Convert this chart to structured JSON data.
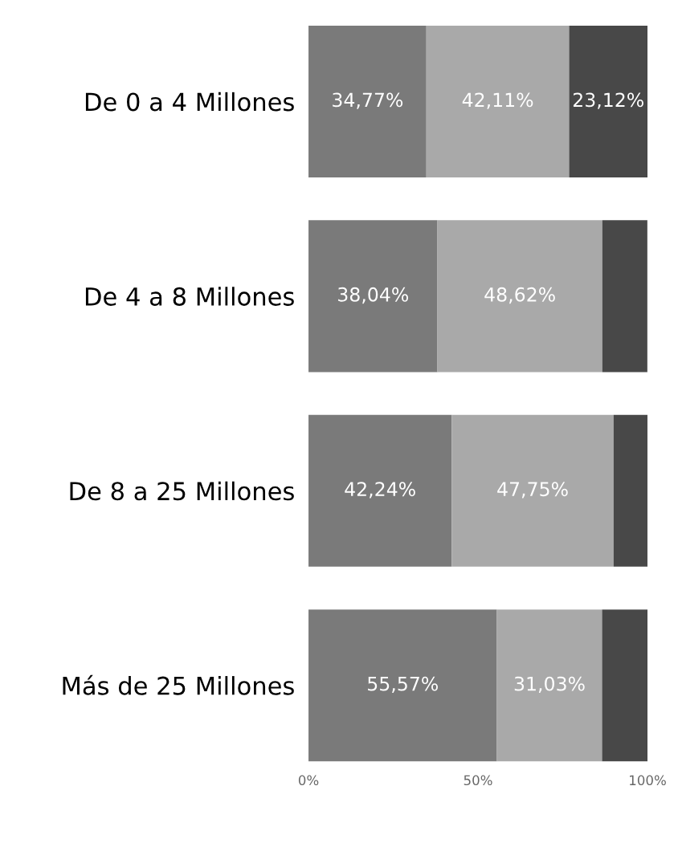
{
  "chart_data": {
    "type": "bar",
    "orientation": "horizontal",
    "stacked": true,
    "categories": [
      "De 0 a 4 Millones",
      "De 4 a 8 Millones",
      "De 8 a 25 Millones",
      "Más de 25 Millones"
    ],
    "series": [
      {
        "color": "#7a7a7a",
        "values": [
          34.77,
          38.04,
          42.24,
          55.57
        ],
        "value_labels": [
          "34,77%",
          "38,04%",
          "42,24%",
          "55,57%"
        ]
      },
      {
        "color": "#a9a9a9",
        "values": [
          42.11,
          48.62,
          47.75,
          31.03
        ],
        "value_labels": [
          "42,11%",
          "48,62%",
          "47,75%",
          "31,03%"
        ]
      },
      {
        "color": "#484848",
        "values": [
          23.12,
          13.3,
          10.0,
          13.4
        ],
        "value_labels": [
          "23,12%",
          null,
          null,
          null
        ]
      }
    ],
    "xlim": [
      0,
      100
    ],
    "xticks": [
      {
        "value": 0,
        "label": "0%"
      },
      {
        "value": 50,
        "label": "50%"
      },
      {
        "value": 100,
        "label": "100%"
      }
    ],
    "grid": false
  }
}
